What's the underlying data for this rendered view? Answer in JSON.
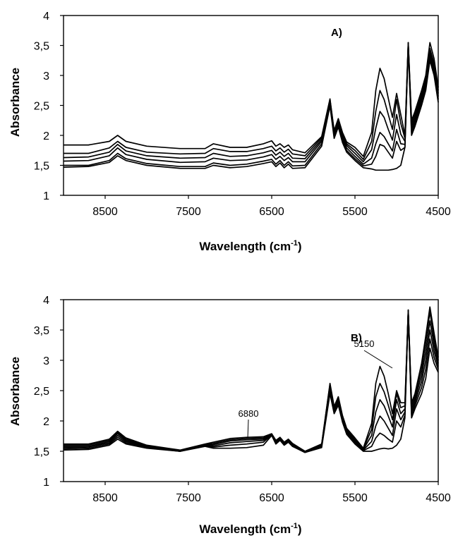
{
  "chart_data": [
    {
      "type": "line",
      "panel_label": "A)",
      "xlabel": "Wavelength (cm",
      "xlabel_sup": "-1",
      "xlabel_close": ")",
      "ylabel": "Absorbance",
      "xlim": [
        9000,
        4500
      ],
      "ylim": [
        1,
        4
      ],
      "x_reversed": true,
      "grid": false,
      "xticks": [
        8500,
        7500,
        6500,
        5500,
        4500
      ],
      "xtick_labels": [
        "8500",
        "7500",
        "6500",
        "5500",
        "4500"
      ],
      "yticks": [
        1,
        1.5,
        2,
        2.5,
        3,
        3.5,
        4
      ],
      "ytick_labels": [
        "1",
        "1,5",
        "2",
        "2,5",
        "3",
        "3,5",
        "4"
      ],
      "x": [
        9000,
        8700,
        8450,
        8350,
        8250,
        8000,
        7600,
        7300,
        7200,
        7000,
        6800,
        6600,
        6500,
        6450,
        6400,
        6350,
        6300,
        6250,
        6100,
        5900,
        5800,
        5750,
        5700,
        5650,
        5600,
        5500,
        5400,
        5300,
        5250,
        5200,
        5150,
        5100,
        5050,
        5000,
        4950,
        4900,
        4860,
        4820,
        4780,
        4700,
        4650,
        4600,
        4550,
        4500
      ],
      "series": [
        {
          "values": [
            1.47,
            1.48,
            1.55,
            1.66,
            1.58,
            1.5,
            1.45,
            1.45,
            1.5,
            1.46,
            1.48,
            1.53,
            1.56,
            1.48,
            1.54,
            1.46,
            1.52,
            1.45,
            1.46,
            1.82,
            2.49,
            1.95,
            2.14,
            1.88,
            1.72,
            1.58,
            1.46,
            1.44,
            1.42,
            1.42,
            1.42,
            1.42,
            1.43,
            1.45,
            1.5,
            1.8,
            3.5,
            2.0,
            2.15,
            2.5,
            2.75,
            3.25,
            3.0,
            2.55
          ]
        },
        {
          "values": [
            1.5,
            1.5,
            1.58,
            1.7,
            1.61,
            1.53,
            1.48,
            1.48,
            1.54,
            1.5,
            1.52,
            1.57,
            1.6,
            1.52,
            1.58,
            1.5,
            1.56,
            1.49,
            1.5,
            1.86,
            2.52,
            1.98,
            2.17,
            1.92,
            1.75,
            1.61,
            1.49,
            1.52,
            1.65,
            1.85,
            1.82,
            1.72,
            1.62,
            1.9,
            1.75,
            1.8,
            3.5,
            2.05,
            2.2,
            2.55,
            2.8,
            3.3,
            3.05,
            2.6
          ]
        },
        {
          "values": [
            1.57,
            1.58,
            1.66,
            1.79,
            1.68,
            1.6,
            1.55,
            1.56,
            1.62,
            1.58,
            1.59,
            1.64,
            1.68,
            1.6,
            1.65,
            1.58,
            1.63,
            1.56,
            1.56,
            1.9,
            2.56,
            2.0,
            2.2,
            1.95,
            1.79,
            1.65,
            1.52,
            1.62,
            1.86,
            2.05,
            1.98,
            1.86,
            1.74,
            2.1,
            1.86,
            1.85,
            3.52,
            2.1,
            2.25,
            2.6,
            2.85,
            3.35,
            3.1,
            2.65
          ]
        },
        {
          "values": [
            1.63,
            1.64,
            1.72,
            1.85,
            1.74,
            1.66,
            1.62,
            1.63,
            1.7,
            1.65,
            1.66,
            1.71,
            1.75,
            1.67,
            1.72,
            1.65,
            1.7,
            1.62,
            1.61,
            1.93,
            2.58,
            2.03,
            2.23,
            1.99,
            1.83,
            1.7,
            1.56,
            1.76,
            2.12,
            2.4,
            2.3,
            2.1,
            1.92,
            2.35,
            2.02,
            1.9,
            3.53,
            2.15,
            2.3,
            2.65,
            2.9,
            3.4,
            3.15,
            2.7
          ]
        },
        {
          "values": [
            1.7,
            1.7,
            1.79,
            1.9,
            1.8,
            1.72,
            1.69,
            1.7,
            1.78,
            1.73,
            1.73,
            1.78,
            1.82,
            1.74,
            1.79,
            1.72,
            1.77,
            1.69,
            1.66,
            1.96,
            2.6,
            2.06,
            2.26,
            2.02,
            1.86,
            1.75,
            1.6,
            1.9,
            2.4,
            2.75,
            2.6,
            2.35,
            2.1,
            2.6,
            2.2,
            1.95,
            3.55,
            2.2,
            2.35,
            2.7,
            2.95,
            3.45,
            3.2,
            2.75
          ]
        },
        {
          "values": [
            1.84,
            1.84,
            1.9,
            2.0,
            1.9,
            1.82,
            1.78,
            1.78,
            1.86,
            1.8,
            1.8,
            1.86,
            1.91,
            1.82,
            1.86,
            1.8,
            1.84,
            1.76,
            1.71,
            1.98,
            2.61,
            2.08,
            2.28,
            2.05,
            1.89,
            1.8,
            1.65,
            2.05,
            2.75,
            3.12,
            2.95,
            2.62,
            2.3,
            2.7,
            2.35,
            2.0,
            3.55,
            2.25,
            2.4,
            2.75,
            3.0,
            3.55,
            3.28,
            2.8
          ]
        }
      ]
    },
    {
      "type": "line",
      "panel_label": "B)",
      "xlabel": "Wavelength (cm",
      "xlabel_sup": "-1",
      "xlabel_close": ")",
      "ylabel": "Absorbance",
      "xlim": [
        9000,
        4500
      ],
      "ylim": [
        1,
        4
      ],
      "x_reversed": true,
      "grid": false,
      "xticks": [
        8500,
        7500,
        6500,
        5500,
        4500
      ],
      "xtick_labels": [
        "8500",
        "7500",
        "6500",
        "5500",
        "4500"
      ],
      "yticks": [
        1,
        1.5,
        2,
        2.5,
        3,
        3.5,
        4
      ],
      "ytick_labels": [
        "1",
        "1,5",
        "2",
        "2,5",
        "3",
        "3,5",
        "4"
      ],
      "annotations": [
        {
          "text": "6880",
          "x": 6880,
          "y": 1.7
        },
        {
          "text": "5150",
          "x": 5150,
          "y": 2.9
        }
      ],
      "x": [
        9000,
        8700,
        8450,
        8350,
        8250,
        8000,
        7600,
        7300,
        7200,
        7000,
        6800,
        6600,
        6500,
        6450,
        6400,
        6350,
        6300,
        6250,
        6100,
        5900,
        5800,
        5750,
        5700,
        5650,
        5600,
        5500,
        5400,
        5300,
        5250,
        5200,
        5150,
        5100,
        5050,
        5000,
        4950,
        4900,
        4860,
        4820,
        4780,
        4700,
        4650,
        4600,
        4550,
        4500
      ],
      "series": [
        {
          "values": [
            1.52,
            1.53,
            1.6,
            1.7,
            1.62,
            1.55,
            1.5,
            1.58,
            1.55,
            1.55,
            1.56,
            1.6,
            1.76,
            1.62,
            1.68,
            1.6,
            1.65,
            1.58,
            1.48,
            1.56,
            2.45,
            2.12,
            2.26,
            1.98,
            1.78,
            1.62,
            1.5,
            1.5,
            1.52,
            1.54,
            1.55,
            1.54,
            1.55,
            1.6,
            1.7,
            2.05,
            3.8,
            2.05,
            2.2,
            2.45,
            2.7,
            3.2,
            2.95,
            2.8
          ]
        },
        {
          "values": [
            1.54,
            1.55,
            1.62,
            1.73,
            1.64,
            1.56,
            1.5,
            1.59,
            1.57,
            1.6,
            1.62,
            1.65,
            1.77,
            1.64,
            1.69,
            1.61,
            1.66,
            1.59,
            1.48,
            1.58,
            2.5,
            2.15,
            2.3,
            2.0,
            1.8,
            1.64,
            1.51,
            1.58,
            1.72,
            1.8,
            1.76,
            1.7,
            1.65,
            2.0,
            1.9,
            2.1,
            3.8,
            2.1,
            2.25,
            2.55,
            2.85,
            3.35,
            3.05,
            2.85
          ]
        },
        {
          "values": [
            1.56,
            1.57,
            1.64,
            1.76,
            1.66,
            1.57,
            1.5,
            1.6,
            1.59,
            1.64,
            1.66,
            1.68,
            1.77,
            1.65,
            1.7,
            1.62,
            1.67,
            1.6,
            1.49,
            1.59,
            2.54,
            2.18,
            2.32,
            2.02,
            1.82,
            1.66,
            1.52,
            1.66,
            1.92,
            2.08,
            2.0,
            1.88,
            1.76,
            2.2,
            2.02,
            2.15,
            3.8,
            2.15,
            2.3,
            2.65,
            3.0,
            3.5,
            3.15,
            2.9
          ]
        },
        {
          "values": [
            1.58,
            1.58,
            1.66,
            1.79,
            1.68,
            1.58,
            1.51,
            1.6,
            1.61,
            1.67,
            1.69,
            1.7,
            1.78,
            1.66,
            1.71,
            1.63,
            1.68,
            1.61,
            1.49,
            1.6,
            2.58,
            2.2,
            2.35,
            2.05,
            1.84,
            1.68,
            1.53,
            1.76,
            2.15,
            2.35,
            2.25,
            2.08,
            1.9,
            2.35,
            2.12,
            2.2,
            3.82,
            2.2,
            2.35,
            2.75,
            3.15,
            3.65,
            3.25,
            2.95
          ]
        },
        {
          "values": [
            1.6,
            1.6,
            1.68,
            1.81,
            1.7,
            1.59,
            1.51,
            1.61,
            1.63,
            1.69,
            1.71,
            1.72,
            1.78,
            1.67,
            1.72,
            1.64,
            1.69,
            1.62,
            1.5,
            1.61,
            2.6,
            2.22,
            2.38,
            2.07,
            1.86,
            1.7,
            1.54,
            1.86,
            2.4,
            2.62,
            2.48,
            2.26,
            2.02,
            2.45,
            2.22,
            2.25,
            3.83,
            2.25,
            2.4,
            2.85,
            3.3,
            3.8,
            3.35,
            3.0
          ]
        },
        {
          "values": [
            1.62,
            1.62,
            1.7,
            1.83,
            1.72,
            1.6,
            1.52,
            1.62,
            1.65,
            1.71,
            1.73,
            1.74,
            1.79,
            1.68,
            1.73,
            1.65,
            1.7,
            1.63,
            1.5,
            1.62,
            2.62,
            2.24,
            2.4,
            2.09,
            1.88,
            1.72,
            1.55,
            1.96,
            2.62,
            2.9,
            2.74,
            2.45,
            2.12,
            2.5,
            2.3,
            2.3,
            3.83,
            2.3,
            2.45,
            2.95,
            3.4,
            3.88,
            3.45,
            3.05
          ]
        }
      ]
    }
  ]
}
